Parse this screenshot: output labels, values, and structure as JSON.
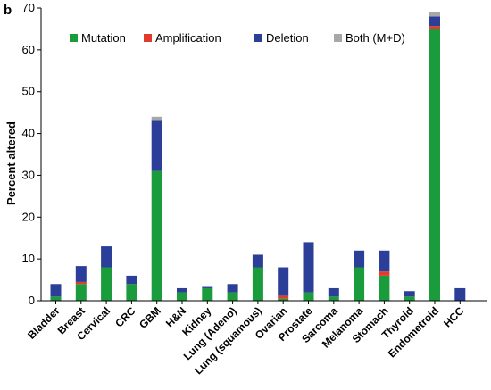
{
  "chart_data": {
    "type": "bar",
    "stacked": true,
    "panel_label": "b",
    "ylabel": "Percent altered",
    "ylim": [
      0,
      70
    ],
    "yticks": [
      0,
      10,
      20,
      30,
      40,
      50,
      60,
      70
    ],
    "grid": false,
    "legend_position": "top",
    "categories": [
      "Bladder",
      "Breast",
      "Cervical",
      "CRC",
      "GBM",
      "H&N",
      "Kidney",
      "Lung (Adeno)",
      "Lung (squamous)",
      "Ovarian",
      "Prostate",
      "Sarcoma",
      "Melanoma",
      "Stomach",
      "Thyroid",
      "Endometroid",
      "HCC"
    ],
    "series": [
      {
        "name": "Mutation",
        "color": "#1a9b3c",
        "values": [
          1,
          4,
          8,
          4,
          31,
          2,
          3,
          2,
          8,
          0.5,
          2,
          1,
          8,
          6,
          1,
          65,
          0
        ]
      },
      {
        "name": "Amplification",
        "color": "#e23a2c",
        "values": [
          0,
          0.5,
          0,
          0,
          0,
          0,
          0,
          0,
          0,
          0.7,
          0,
          0,
          0,
          1,
          0,
          0.7,
          0
        ]
      },
      {
        "name": "Deletion",
        "color": "#2b3f99",
        "values": [
          3,
          3.8,
          5,
          2,
          12,
          1,
          0.3,
          2,
          3,
          6.8,
          12,
          2,
          4,
          5,
          1.3,
          2.3,
          3
        ]
      },
      {
        "name": "Both (M+D)",
        "color": "#a7a7a7",
        "values": [
          0,
          0,
          0,
          0,
          1,
          0,
          0,
          0,
          0,
          0,
          0,
          0,
          0,
          0,
          0,
          1,
          0
        ]
      }
    ]
  }
}
